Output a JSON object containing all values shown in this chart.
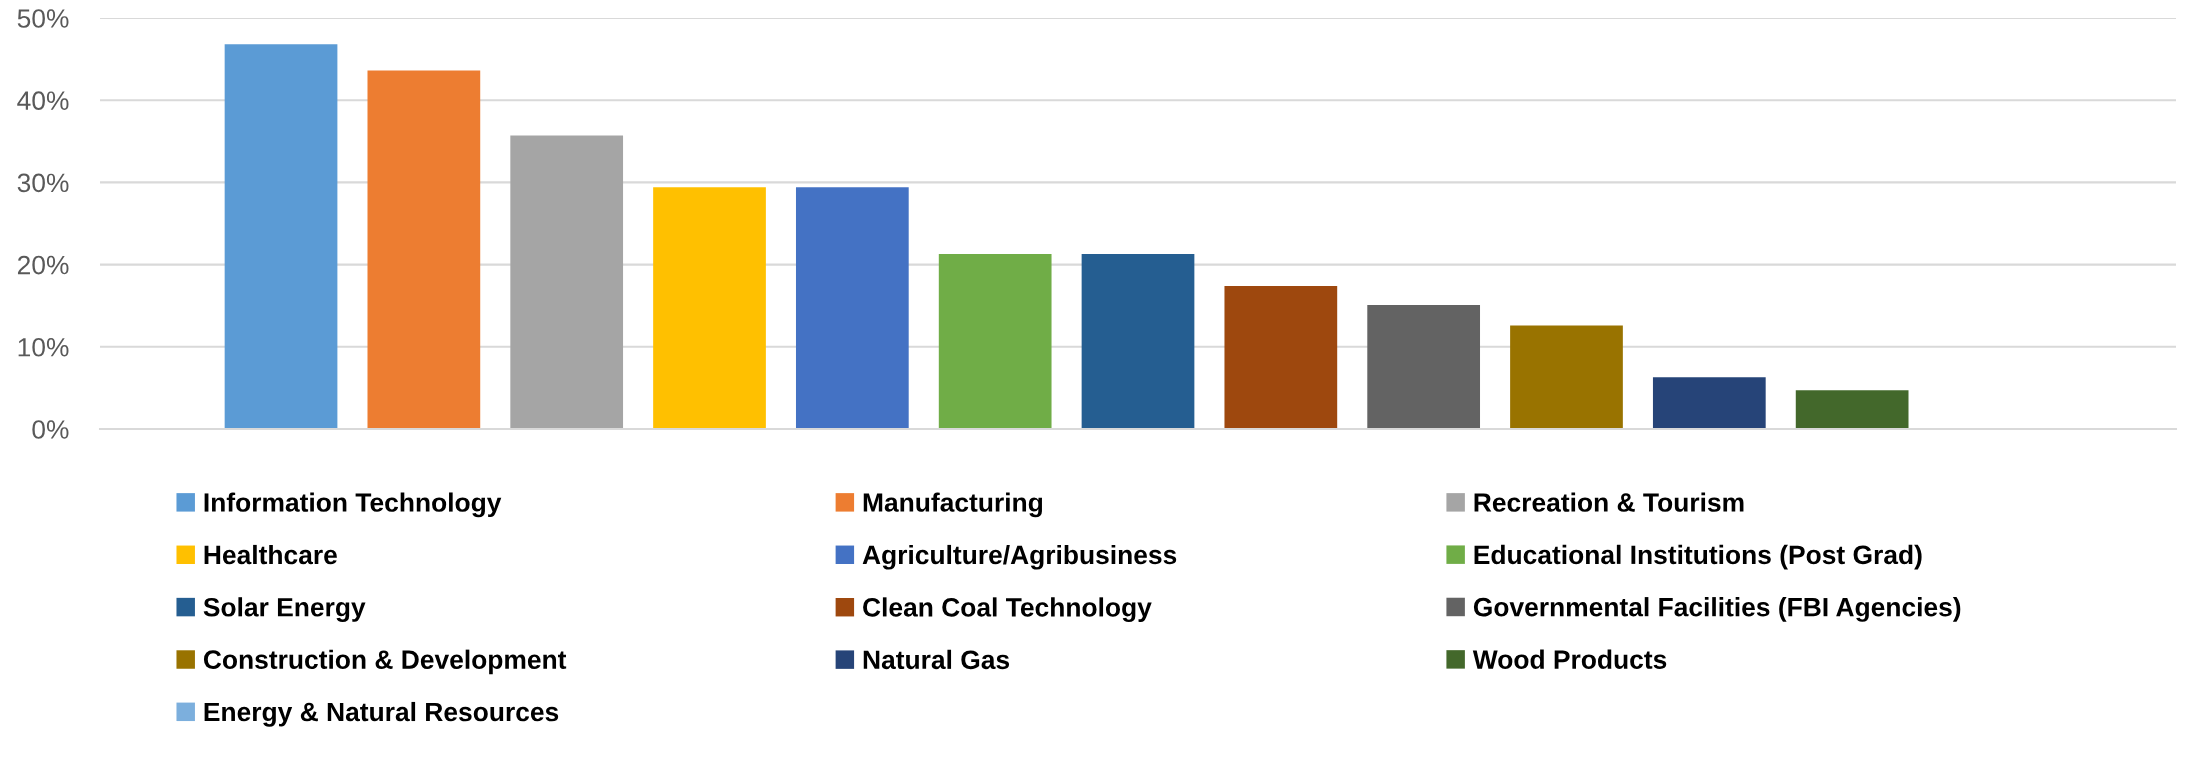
{
  "chart_data": {
    "type": "bar",
    "categories": [
      null
    ],
    "series": [
      {
        "name": "Information Technology",
        "color": "#5b9bd5",
        "values": [
          46.8
        ]
      },
      {
        "name": "Manufacturing",
        "color": "#ed7d31",
        "values": [
          43.6
        ]
      },
      {
        "name": "Recreation & Tourism",
        "color": "#a5a5a5",
        "values": [
          35.7
        ]
      },
      {
        "name": "Healthcare",
        "color": "#ffc000",
        "values": [
          29.4
        ]
      },
      {
        "name": "Agriculture/Agribusiness",
        "color": "#4472c4",
        "values": [
          29.4
        ]
      },
      {
        "name": "Educational Institutions (Post Grad)",
        "color": "#70ad47",
        "values": [
          21.3
        ]
      },
      {
        "name": "Solar Energy",
        "color": "#255e91",
        "values": [
          21.3
        ]
      },
      {
        "name": "Clean Coal Technology",
        "color": "#9e480e",
        "values": [
          17.4
        ]
      },
      {
        "name": "Governmental Facilities (FBI Agencies)",
        "color": "#636363",
        "values": [
          15.1
        ]
      },
      {
        "name": "Construction & Development",
        "color": "#997300",
        "values": [
          12.6
        ]
      },
      {
        "name": "Natural Gas",
        "color": "#264478",
        "values": [
          6.3
        ]
      },
      {
        "name": "Wood Products",
        "color": "#43682b",
        "values": [
          4.7
        ]
      },
      {
        "name": "Energy & Natural Resources",
        "color": "#7cafdd",
        "values": [
          0
        ]
      }
    ],
    "ylim": [
      0,
      50
    ],
    "yticks": [
      {
        "value": 0,
        "label": "0%"
      },
      {
        "value": 10,
        "label": "10%"
      },
      {
        "value": 20,
        "label": "20%"
      },
      {
        "value": 30,
        "label": "30%"
      },
      {
        "value": 40,
        "label": "40%"
      },
      {
        "value": 50,
        "label": "50%"
      }
    ],
    "grid": "y",
    "legend": "bottom",
    "tick_labels": "y"
  }
}
